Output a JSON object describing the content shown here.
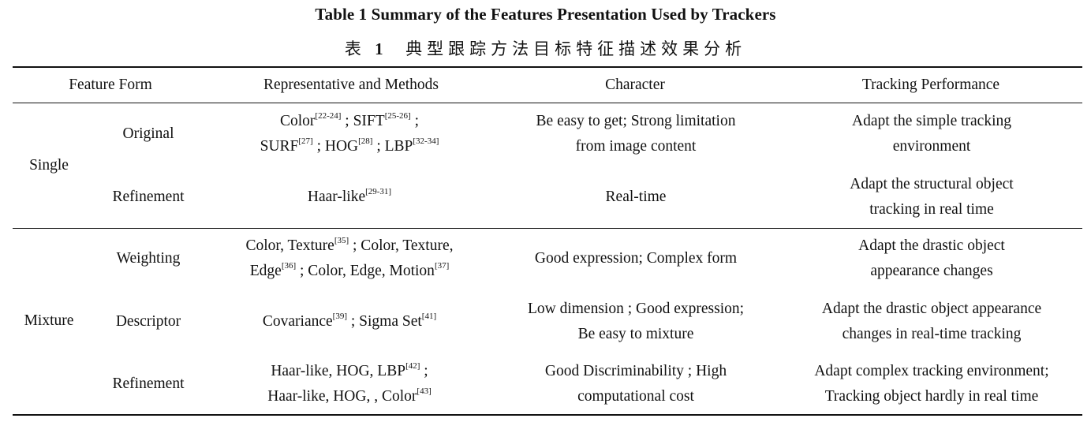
{
  "caption": {
    "en": "Table 1   Summary of the Features Presentation Used by Trackers",
    "zh_prefix": "表",
    "zh_num": "1",
    "zh_text": "典型跟踪方法目标特征描述效果分析"
  },
  "headers": [
    "Feature Form",
    "Representative and Methods",
    "Character",
    "Tracking Performance"
  ],
  "groups": [
    {
      "label": "Single"
    },
    {
      "label": "Mixture"
    }
  ],
  "rows": [
    {
      "sub": "Original",
      "methods": [
        [
          {
            "t": "Color"
          },
          {
            "s": "[22-24]"
          },
          {
            "t": " ; SIFT"
          },
          {
            "s": "[25-26]"
          },
          {
            "t": " ;"
          }
        ],
        [
          {
            "t": "SURF"
          },
          {
            "s": "[27]"
          },
          {
            "t": " ; HOG"
          },
          {
            "s": "[28]"
          },
          {
            "t": " ; LBP"
          },
          {
            "s": "[32-34]"
          }
        ]
      ],
      "character": [
        "Be easy to get; Strong limitation",
        "from image content"
      ],
      "performance": [
        "Adapt the simple tracking",
        "environment"
      ]
    },
    {
      "sub": "Refinement",
      "methods": [
        [
          {
            "t": "Haar-like"
          },
          {
            "s": "[29-31]"
          }
        ]
      ],
      "character": [
        "Real-time"
      ],
      "performance": [
        "Adapt the structural object",
        "tracking in real time"
      ]
    },
    {
      "sub": "Weighting",
      "methods": [
        [
          {
            "t": "Color, Texture"
          },
          {
            "s": "[35]"
          },
          {
            "t": " ;  Color, Texture,"
          }
        ],
        [
          {
            "t": "Edge"
          },
          {
            "s": "[36]"
          },
          {
            "t": " ; Color, Edge, Motion"
          },
          {
            "s": "[37]"
          }
        ]
      ],
      "character": [
        "Good expression; Complex form"
      ],
      "performance": [
        "Adapt the drastic object",
        "appearance changes"
      ]
    },
    {
      "sub": "Descriptor",
      "methods": [
        [
          {
            "t": "Covariance"
          },
          {
            "s": "[39]"
          },
          {
            "t": " ; Sigma Set"
          },
          {
            "s": "[41]"
          }
        ]
      ],
      "character": [
        "Low dimension ; Good expression;",
        "Be easy to mixture"
      ],
      "performance": [
        "Adapt the drastic object appearance",
        "changes in real-time tracking"
      ]
    },
    {
      "sub": "Refinement",
      "methods": [
        [
          {
            "t": "Haar-like, HOG,  LBP"
          },
          {
            "s": "[42]"
          },
          {
            "t": " ;"
          }
        ],
        [
          {
            "t": "Haar-like, HOG, , Color"
          },
          {
            "s": "[43]"
          }
        ]
      ],
      "character": [
        "Good Discriminability ; High",
        "computational cost"
      ],
      "performance": [
        "Adapt complex tracking environment;",
        "Tracking object hardly in real time"
      ]
    }
  ]
}
